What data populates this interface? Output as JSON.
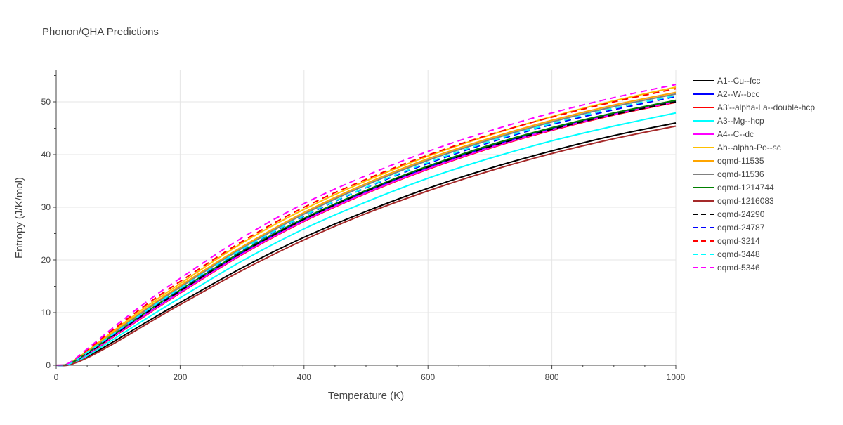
{
  "chart_data": {
    "type": "line",
    "title": "Phonon/QHA Predictions",
    "xlabel": "Temperature (K)",
    "ylabel": "Entropy (J/K/mol)",
    "xlim": [
      0,
      1000
    ],
    "ylim": [
      0,
      56
    ],
    "xticks": [
      0,
      200,
      400,
      600,
      800,
      1000
    ],
    "yticks": [
      0,
      10,
      20,
      30,
      40,
      50
    ],
    "grid": true,
    "legend_position": "right",
    "series": [
      {
        "name": "A1--Cu--fcc",
        "color": "#000000",
        "dash": "solid",
        "x": [
          0,
          20,
          50,
          100,
          150,
          200,
          300,
          400,
          500,
          600,
          700,
          800,
          900,
          1000
        ],
        "y": [
          0,
          0.1,
          1.6,
          5.0,
          8.5,
          11.9,
          18.5,
          24.3,
          29.2,
          33.6,
          37.4,
          40.7,
          43.6,
          46.0
        ]
      },
      {
        "name": "A2--W--bcc",
        "color": "#0000ff",
        "dash": "solid",
        "x": [
          0,
          20,
          50,
          100,
          150,
          200,
          300,
          400,
          500,
          600,
          700,
          800,
          900,
          1000
        ],
        "y": [
          0,
          0.2,
          2.1,
          6.1,
          10.1,
          13.9,
          21.3,
          27.7,
          33.0,
          37.6,
          41.6,
          45.0,
          47.8,
          50.2
        ]
      },
      {
        "name": "A3'--alpha-La--double-hcp",
        "color": "#ff0000",
        "dash": "solid",
        "x": [
          0,
          20,
          50,
          100,
          150,
          200,
          300,
          400,
          500,
          600,
          700,
          800,
          900,
          1000
        ],
        "y": [
          0,
          0.2,
          2.0,
          6.0,
          9.9,
          13.7,
          21.0,
          27.3,
          32.6,
          37.2,
          41.2,
          44.6,
          47.5,
          49.9
        ]
      },
      {
        "name": "A3--Mg--hcp",
        "color": "#00ffff",
        "dash": "solid",
        "x": [
          0,
          20,
          50,
          100,
          150,
          200,
          300,
          400,
          500,
          600,
          700,
          800,
          900,
          1000
        ],
        "y": [
          0,
          0.1,
          1.8,
          5.5,
          9.2,
          12.8,
          19.8,
          25.9,
          31.0,
          35.5,
          39.3,
          42.6,
          45.4,
          47.9
        ]
      },
      {
        "name": "A4--C--dc",
        "color": "#ff00ff",
        "dash": "solid",
        "x": [
          0,
          20,
          50,
          100,
          150,
          200,
          300,
          400,
          500,
          600,
          700,
          800,
          900,
          1000
        ],
        "y": [
          0,
          0.2,
          2.1,
          6.1,
          10.0,
          13.8,
          21.1,
          27.4,
          32.7,
          37.3,
          41.3,
          44.7,
          47.6,
          50.0
        ]
      },
      {
        "name": "Ah--alpha-Po--sc",
        "color": "#ffc000",
        "dash": "solid",
        "x": [
          0,
          20,
          50,
          100,
          150,
          200,
          300,
          400,
          500,
          600,
          700,
          800,
          900,
          1000
        ],
        "y": [
          0,
          0.3,
          2.7,
          7.2,
          11.5,
          15.5,
          23.2,
          29.6,
          35.0,
          39.7,
          43.7,
          47.2,
          50.2,
          52.8
        ]
      },
      {
        "name": "oqmd-11535",
        "color": "#ffa500",
        "dash": "solid",
        "x": [
          0,
          20,
          50,
          100,
          150,
          200,
          300,
          400,
          500,
          600,
          700,
          800,
          900,
          1000
        ],
        "y": [
          0,
          0.3,
          2.5,
          6.9,
          11.1,
          15.1,
          22.5,
          29.0,
          34.5,
          39.2,
          43.1,
          46.5,
          49.4,
          51.8
        ]
      },
      {
        "name": "oqmd-11536",
        "color": "#808080",
        "dash": "solid",
        "x": [
          0,
          20,
          50,
          100,
          150,
          200,
          300,
          400,
          500,
          600,
          700,
          800,
          900,
          1000
        ],
        "y": [
          0,
          0.3,
          2.4,
          6.7,
          10.9,
          14.8,
          22.2,
          28.7,
          34.2,
          38.9,
          42.8,
          46.2,
          49.1,
          51.5
        ]
      },
      {
        "name": "oqmd-1214744",
        "color": "#008000",
        "dash": "solid",
        "x": [
          0,
          20,
          50,
          100,
          150,
          200,
          300,
          400,
          500,
          600,
          700,
          800,
          900,
          1000
        ],
        "y": [
          0,
          0.2,
          2.3,
          6.4,
          10.5,
          14.3,
          21.6,
          27.9,
          33.2,
          37.8,
          41.8,
          45.1,
          47.9,
          50.3
        ]
      },
      {
        "name": "oqmd-1216083",
        "color": "#a52a2a",
        "dash": "solid",
        "x": [
          0,
          20,
          50,
          100,
          150,
          200,
          300,
          400,
          500,
          600,
          700,
          800,
          900,
          1000
        ],
        "y": [
          0,
          0.05,
          1.4,
          4.6,
          8.1,
          11.5,
          18.0,
          23.8,
          28.8,
          33.1,
          36.9,
          40.2,
          43.0,
          45.4
        ]
      },
      {
        "name": "oqmd-24290",
        "color": "#000000",
        "dash": "dash",
        "x": [
          0,
          20,
          50,
          100,
          150,
          200,
          300,
          400,
          500,
          600,
          700,
          800,
          900,
          1000
        ],
        "y": [
          0,
          0.2,
          2.2,
          6.3,
          10.3,
          14.1,
          21.4,
          27.7,
          33.0,
          37.6,
          41.5,
          44.8,
          47.6,
          50.0
        ]
      },
      {
        "name": "oqmd-24787",
        "color": "#0000ff",
        "dash": "dash",
        "x": [
          0,
          20,
          50,
          100,
          150,
          200,
          300,
          400,
          500,
          600,
          700,
          800,
          900,
          1000
        ],
        "y": [
          0,
          0.2,
          2.4,
          6.5,
          10.6,
          14.5,
          21.9,
          28.3,
          33.7,
          38.3,
          42.3,
          45.7,
          48.5,
          51.0
        ]
      },
      {
        "name": "oqmd-3214",
        "color": "#ff0000",
        "dash": "dash",
        "x": [
          0,
          20,
          50,
          100,
          150,
          200,
          300,
          400,
          500,
          600,
          700,
          800,
          900,
          1000
        ],
        "y": [
          0,
          0.3,
          2.9,
          7.5,
          11.9,
          15.9,
          23.5,
          30.0,
          35.3,
          39.9,
          43.8,
          47.1,
          50.0,
          52.5
        ]
      },
      {
        "name": "oqmd-3448",
        "color": "#00ffff",
        "dash": "dash",
        "x": [
          0,
          20,
          50,
          100,
          150,
          200,
          300,
          400,
          500,
          600,
          700,
          800,
          900,
          1000
        ],
        "y": [
          0,
          0.2,
          2.4,
          6.6,
          10.7,
          14.6,
          22.0,
          28.4,
          33.8,
          38.5,
          42.5,
          45.9,
          48.8,
          51.2
        ]
      },
      {
        "name": "oqmd-5346",
        "color": "#ff00ff",
        "dash": "dash",
        "x": [
          0,
          20,
          50,
          100,
          150,
          200,
          300,
          400,
          500,
          600,
          700,
          800,
          900,
          1000
        ],
        "y": [
          0,
          0.4,
          3.1,
          7.9,
          12.4,
          16.5,
          24.2,
          30.7,
          36.0,
          40.6,
          44.5,
          47.9,
          50.8,
          53.3
        ]
      }
    ]
  }
}
